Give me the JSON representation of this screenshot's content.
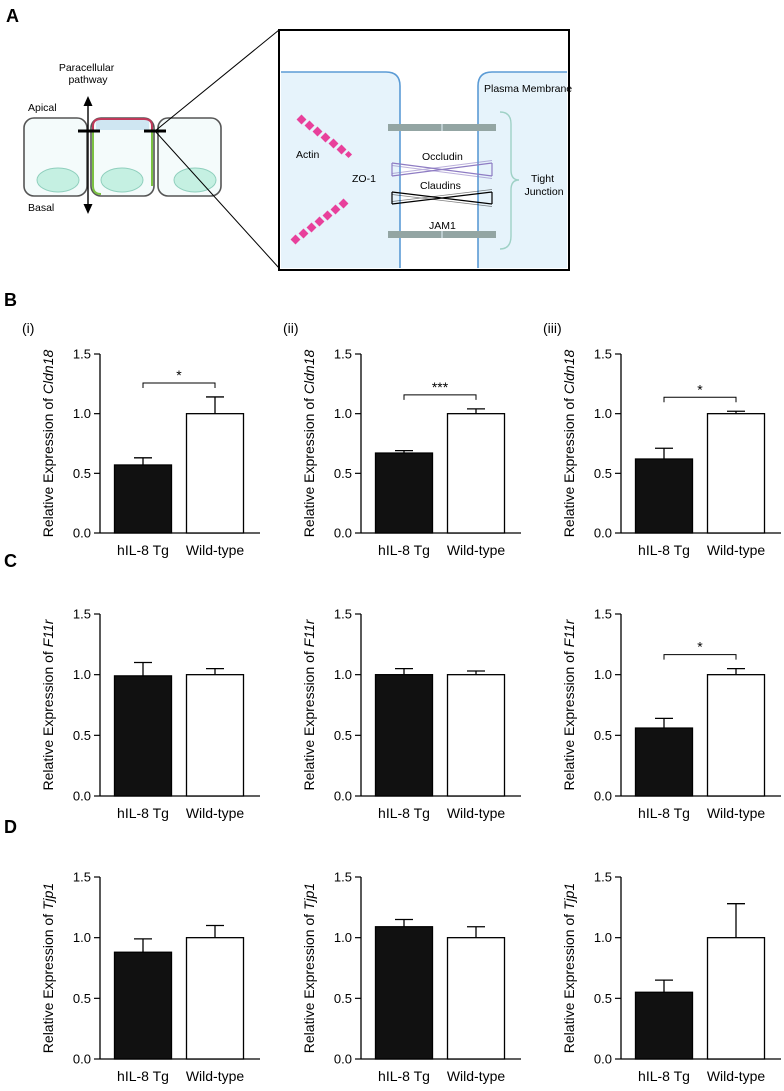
{
  "panel_labels": {
    "A": "A",
    "B": "B",
    "C": "C",
    "D": "D"
  },
  "subpanel_labels": [
    "(i)",
    "(ii)",
    "(iii)"
  ],
  "diagram": {
    "paracellular_pathway": "Paracellular pathway",
    "apical": "Apical",
    "basal": "Basal",
    "plasma_membrane": "Plasma Membrane",
    "actin": "Actin",
    "zo1": "ZO-1",
    "occludin": "Occludin",
    "claudins": "Claudins",
    "jam1": "JAM1",
    "tight_junction": "Tight Junction",
    "colors": {
      "cell_fill": "#e6f3fb",
      "membrane": "#5b9bd5",
      "nucleus": "#c5f0e2",
      "actin": "#e8409b",
      "occludin": "#8e7cc3",
      "tight_junction_brace": "#9fd1c6",
      "gray_strand": "#93a5a3",
      "green_edge": "#7bc142",
      "red_edge": "#c0395a"
    }
  },
  "chart_data": [
    {
      "id": "B-i",
      "type": "bar",
      "row": "B",
      "subpanel": "(i)",
      "gene": "Cldn18",
      "ylabel_prefix": "Relative Expression of ",
      "categories": [
        "hIL-8 Tg",
        "Wild-type"
      ],
      "values": [
        0.57,
        1.0
      ],
      "errors": [
        0.06,
        0.14
      ],
      "colors": [
        "#111111",
        "#ffffff"
      ],
      "ylim": [
        0,
        1.5
      ],
      "yticks": [
        "0.0",
        "0.5",
        "1.0",
        "1.5"
      ],
      "significance": "*"
    },
    {
      "id": "B-ii",
      "type": "bar",
      "row": "B",
      "subpanel": "(ii)",
      "gene": "Cldn18",
      "ylabel_prefix": "Relative Expression of ",
      "categories": [
        "hIL-8 Tg",
        "Wild-type"
      ],
      "values": [
        0.67,
        1.0
      ],
      "errors": [
        0.02,
        0.04
      ],
      "colors": [
        "#111111",
        "#ffffff"
      ],
      "ylim": [
        0,
        1.5
      ],
      "yticks": [
        "0.0",
        "0.5",
        "1.0",
        "1.5"
      ],
      "significance": "***"
    },
    {
      "id": "B-iii",
      "type": "bar",
      "row": "B",
      "subpanel": "(iii)",
      "gene": "Cldn18",
      "ylabel_prefix": "Relative Expression of ",
      "categories": [
        "hIL-8 Tg",
        "Wild-type"
      ],
      "values": [
        0.62,
        1.0
      ],
      "errors": [
        0.09,
        0.02
      ],
      "colors": [
        "#111111",
        "#ffffff"
      ],
      "ylim": [
        0,
        1.5
      ],
      "yticks": [
        "0.0",
        "0.5",
        "1.0",
        "1.5"
      ],
      "significance": "*"
    },
    {
      "id": "C-i",
      "type": "bar",
      "row": "C",
      "subpanel": "",
      "gene": "F11r",
      "ylabel_prefix": "Relative Expression of ",
      "categories": [
        "hIL-8 Tg",
        "Wild-type"
      ],
      "values": [
        0.99,
        1.0
      ],
      "errors": [
        0.11,
        0.05
      ],
      "colors": [
        "#111111",
        "#ffffff"
      ],
      "ylim": [
        0,
        1.5
      ],
      "yticks": [
        "0.0",
        "0.5",
        "1.0",
        "1.5"
      ],
      "significance": ""
    },
    {
      "id": "C-ii",
      "type": "bar",
      "row": "C",
      "subpanel": "",
      "gene": "F11r",
      "ylabel_prefix": "Relative Expression of ",
      "categories": [
        "hIL-8 Tg",
        "Wild-type"
      ],
      "values": [
        1.0,
        1.0
      ],
      "errors": [
        0.05,
        0.03
      ],
      "colors": [
        "#111111",
        "#ffffff"
      ],
      "ylim": [
        0,
        1.5
      ],
      "yticks": [
        "0.0",
        "0.5",
        "1.0",
        "1.5"
      ],
      "significance": ""
    },
    {
      "id": "C-iii",
      "type": "bar",
      "row": "C",
      "subpanel": "",
      "gene": "F11r",
      "ylabel_prefix": "Relative Expression of ",
      "categories": [
        "hIL-8 Tg",
        "Wild-type"
      ],
      "values": [
        0.56,
        1.0
      ],
      "errors": [
        0.08,
        0.05
      ],
      "colors": [
        "#111111",
        "#ffffff"
      ],
      "ylim": [
        0,
        1.5
      ],
      "yticks": [
        "0.0",
        "0.5",
        "1.0",
        "1.5"
      ],
      "significance": "*"
    },
    {
      "id": "D-i",
      "type": "bar",
      "row": "D",
      "subpanel": "",
      "gene": "Tjp1",
      "ylabel_prefix": "Relative Expression of ",
      "categories": [
        "hIL-8 Tg",
        "Wild-type"
      ],
      "values": [
        0.88,
        1.0
      ],
      "errors": [
        0.11,
        0.1
      ],
      "colors": [
        "#111111",
        "#ffffff"
      ],
      "ylim": [
        0,
        1.5
      ],
      "yticks": [
        "0.0",
        "0.5",
        "1.0",
        "1.5"
      ],
      "significance": ""
    },
    {
      "id": "D-ii",
      "type": "bar",
      "row": "D",
      "subpanel": "",
      "gene": "Tjp1",
      "ylabel_prefix": "Relative Expression of ",
      "categories": [
        "hIL-8 Tg",
        "Wild-type"
      ],
      "values": [
        1.09,
        1.0
      ],
      "errors": [
        0.06,
        0.09
      ],
      "colors": [
        "#111111",
        "#ffffff"
      ],
      "ylim": [
        0,
        1.5
      ],
      "yticks": [
        "0.0",
        "0.5",
        "1.0",
        "1.5"
      ],
      "significance": ""
    },
    {
      "id": "D-iii",
      "type": "bar",
      "row": "D",
      "subpanel": "",
      "gene": "Tjp1",
      "ylabel_prefix": "Relative Expression of ",
      "categories": [
        "hIL-8 Tg",
        "Wild-type"
      ],
      "values": [
        0.55,
        1.0
      ],
      "errors": [
        0.1,
        0.28
      ],
      "colors": [
        "#111111",
        "#ffffff"
      ],
      "ylim": [
        0,
        1.5
      ],
      "yticks": [
        "0.0",
        "0.5",
        "1.0",
        "1.5"
      ],
      "significance": ""
    }
  ]
}
